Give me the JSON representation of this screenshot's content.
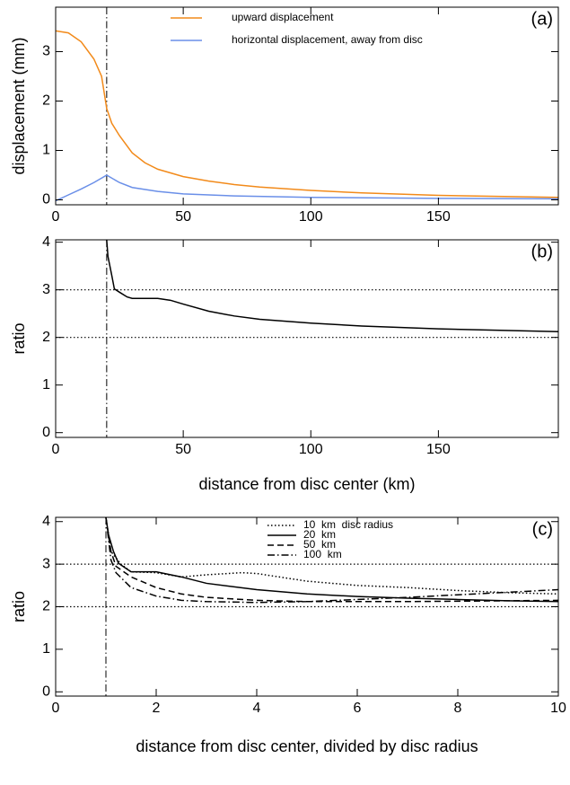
{
  "chart_data": [
    {
      "type": "line",
      "label": "(a)",
      "ylabel": "displacement (mm)",
      "xlim": [
        0,
        197
      ],
      "ylim": [
        -0.1,
        3.9
      ],
      "xticks": [
        0,
        50,
        100,
        150
      ],
      "yticks": [
        0,
        1,
        2,
        3
      ],
      "vlines": [
        20
      ],
      "legend": "top-center",
      "series": [
        {
          "name": "upward displacement",
          "color": "#f28a1a",
          "dash": "solid",
          "x": [
            0,
            5,
            10,
            15,
            18,
            20,
            22,
            25,
            30,
            35,
            40,
            50,
            60,
            70,
            80,
            100,
            120,
            150,
            197
          ],
          "values": [
            3.42,
            3.38,
            3.2,
            2.85,
            2.5,
            1.85,
            1.55,
            1.3,
            0.95,
            0.75,
            0.62,
            0.47,
            0.38,
            0.31,
            0.26,
            0.19,
            0.14,
            0.09,
            0.05
          ]
        },
        {
          "name": "horizontal displacement, away from disc",
          "color": "#6a8fe8",
          "dash": "solid",
          "x": [
            0,
            5,
            10,
            15,
            20,
            25,
            30,
            40,
            50,
            70,
            100,
            150,
            197
          ],
          "values": [
            -0.02,
            0.1,
            0.22,
            0.35,
            0.5,
            0.35,
            0.25,
            0.17,
            0.12,
            0.08,
            0.05,
            0.03,
            0.02
          ]
        }
      ]
    },
    {
      "type": "line",
      "label": "(b)",
      "ylabel": "ratio",
      "xlabel": "distance from disc center (km)",
      "xlim": [
        0,
        197
      ],
      "ylim": [
        -0.1,
        4.05
      ],
      "xticks": [
        0,
        50,
        100,
        150
      ],
      "yticks": [
        0,
        1,
        2,
        3,
        4
      ],
      "vlines": [
        20
      ],
      "hlines": [
        2,
        3
      ],
      "series": [
        {
          "color": "#000000",
          "dash": "solid",
          "x": [
            20,
            20.5,
            22,
            23,
            25,
            28,
            30,
            35,
            40,
            45,
            50,
            60,
            70,
            80,
            100,
            120,
            150,
            197
          ],
          "values": [
            4.05,
            3.7,
            3.3,
            3.02,
            2.95,
            2.85,
            2.82,
            2.82,
            2.82,
            2.78,
            2.7,
            2.55,
            2.45,
            2.38,
            2.3,
            2.24,
            2.18,
            2.12
          ]
        }
      ]
    },
    {
      "type": "line",
      "label": "(c)",
      "ylabel": "ratio",
      "xlabel": "distance from disc center, divided by disc radius",
      "xlim": [
        0,
        10
      ],
      "ylim": [
        -0.1,
        4.1
      ],
      "xticks": [
        0,
        2,
        4,
        6,
        8,
        10
      ],
      "yticks": [
        0,
        1,
        2,
        3,
        4
      ],
      "vlines": [
        1
      ],
      "hlines": [
        2,
        3
      ],
      "legend": "top-center",
      "series": [
        {
          "name": "10  km  disc radius",
          "color": "#000000",
          "dash": "dot",
          "x": [
            1,
            1.1,
            1.3,
            1.5,
            2,
            2.5,
            3,
            3.7,
            4,
            5,
            6,
            7,
            8,
            9,
            10
          ],
          "values": [
            4.1,
            3.3,
            3.0,
            2.82,
            2.8,
            2.7,
            2.75,
            2.8,
            2.78,
            2.6,
            2.5,
            2.45,
            2.38,
            2.33,
            2.3
          ]
        },
        {
          "name": "20  km",
          "color": "#000000",
          "dash": "solid",
          "x": [
            1,
            1.05,
            1.15,
            1.25,
            1.4,
            1.5,
            2,
            2.5,
            3,
            4,
            5,
            6,
            7,
            8,
            9,
            10
          ],
          "values": [
            4.1,
            3.7,
            3.3,
            3.02,
            2.9,
            2.82,
            2.82,
            2.7,
            2.55,
            2.4,
            2.3,
            2.24,
            2.2,
            2.17,
            2.14,
            2.12
          ]
        },
        {
          "name": "50  km",
          "color": "#000000",
          "dash": "dash",
          "x": [
            1,
            1.1,
            1.2,
            1.5,
            2,
            2.5,
            3,
            4,
            5,
            6,
            7,
            8,
            9,
            10
          ],
          "values": [
            4.1,
            3.3,
            2.95,
            2.7,
            2.45,
            2.3,
            2.22,
            2.15,
            2.12,
            2.12,
            2.12,
            2.13,
            2.14,
            2.15
          ]
        },
        {
          "name": "100  km",
          "color": "#000000",
          "dash": "dashdot",
          "x": [
            1,
            1.1,
            1.2,
            1.5,
            2,
            2.5,
            3,
            4,
            5,
            6,
            7,
            8,
            9,
            10
          ],
          "values": [
            4.1,
            3.1,
            2.8,
            2.45,
            2.25,
            2.15,
            2.12,
            2.1,
            2.12,
            2.17,
            2.22,
            2.28,
            2.34,
            2.4
          ]
        }
      ]
    }
  ]
}
